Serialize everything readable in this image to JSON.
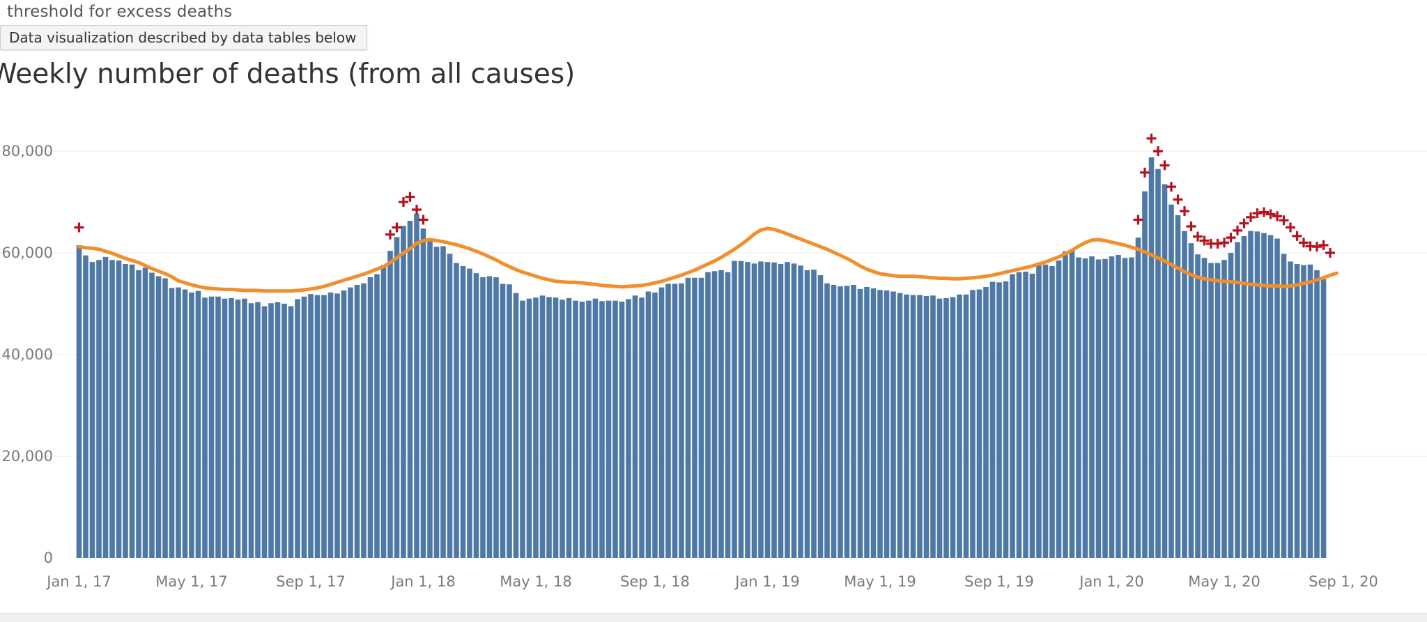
{
  "top_label": "threshold for excess deaths",
  "tooltip": "Data visualization described by data tables below",
  "chart_data": {
    "type": "bar",
    "title": "Weekly number of deaths (from all causes)",
    "xlabel": "",
    "ylabel": "",
    "ylim": [
      0,
      80000
    ],
    "yticks": [
      0,
      20000,
      40000,
      60000,
      80000
    ],
    "ytick_labels": [
      "0",
      "20,000",
      "40,000",
      "60,000",
      "80,000"
    ],
    "xtick_labels": [
      "Jan 1, 17",
      "May 1, 17",
      "Sep 1, 17",
      "Jan 1, 18",
      "May 1, 18",
      "Sep 1, 18",
      "Jan 1, 19",
      "May 1, 19",
      "Sep 1, 19",
      "Jan 1, 20",
      "May 1, 20",
      "Sep 1, 20"
    ],
    "xtick_week_index": [
      0,
      17,
      35,
      52,
      69,
      87,
      104,
      121,
      139,
      156,
      173,
      191
    ],
    "grid": "horizontal",
    "colors": {
      "bars": "#4e79a7",
      "threshold_line": "#f28e2b",
      "excess_marker": "#b5121b"
    },
    "series": [
      {
        "kind": "bar",
        "values": [
          61500,
          59500,
          58200,
          58600,
          59200,
          58600,
          58500,
          57800,
          57700,
          56600,
          57100,
          56100,
          55400,
          55000,
          53100,
          53200,
          52800,
          52200,
          52500,
          51200,
          51400,
          51400,
          51000,
          51100,
          50800,
          51000,
          50100,
          50300,
          49500,
          50100,
          50300,
          50000,
          49500,
          50900,
          51400,
          51900,
          51700,
          51700,
          52200,
          52000,
          52600,
          53200,
          53700,
          54000,
          55200,
          55800,
          57600,
          60400,
          63100,
          65300,
          66300,
          67700,
          64800,
          62700,
          61200,
          61300,
          59800,
          58000,
          57400,
          56900,
          56000,
          55200,
          55400,
          55200,
          53900,
          53800,
          52100,
          50600,
          51000,
          51200,
          51600,
          51300,
          51200,
          50800,
          51100,
          50600,
          50400,
          50600,
          51000,
          50500,
          50600,
          50600,
          50400,
          50900,
          51600,
          51200,
          52400,
          52200,
          53200,
          53900,
          53900,
          54000,
          55100,
          55100,
          55100,
          56200,
          56400,
          56600,
          56200,
          58400,
          58400,
          58200,
          57900,
          58300,
          58200,
          58100,
          57800,
          58200,
          57900,
          57500,
          56600,
          56700,
          55600,
          54000,
          53700,
          53400,
          53500,
          53700,
          52900,
          53300,
          53000,
          52700,
          52600,
          52400,
          52100,
          51800,
          51700,
          51700,
          51500,
          51600,
          51000,
          51100,
          51300,
          51800,
          51800,
          52700,
          52800,
          53300,
          54300,
          54200,
          54400,
          55800,
          56200,
          56300,
          55900,
          57500,
          57700,
          57400,
          58500,
          60300,
          60700,
          59100,
          58900,
          59300,
          58700,
          58800,
          59300,
          59600,
          59000,
          59100,
          63000,
          72100,
          78800,
          76500,
          73500,
          69500,
          67400,
          64300,
          61900,
          59700,
          59000,
          58000,
          58000,
          58600,
          60000,
          62100,
          63300,
          64300,
          64200,
          63900,
          63500,
          62800,
          59800,
          58300,
          57800,
          57600,
          57700,
          56600,
          54800
        ]
      },
      {
        "kind": "line",
        "name": "threshold for excess deaths",
        "values": [
          61200,
          61000,
          60900,
          60700,
          60300,
          59900,
          59400,
          58900,
          58500,
          58100,
          57500,
          56900,
          56400,
          55900,
          55300,
          54500,
          54100,
          53700,
          53400,
          53100,
          53000,
          52900,
          52800,
          52800,
          52700,
          52600,
          52600,
          52600,
          52500,
          52500,
          52500,
          52500,
          52500,
          52600,
          52700,
          52900,
          53100,
          53400,
          53800,
          54200,
          54600,
          55000,
          55400,
          55800,
          56300,
          56800,
          57300,
          58100,
          59000,
          60000,
          60800,
          61900,
          62400,
          62600,
          62400,
          62200,
          61900,
          61600,
          61200,
          60800,
          60300,
          59800,
          59200,
          58600,
          57900,
          57300,
          56700,
          56200,
          55800,
          55400,
          55000,
          54700,
          54400,
          54300,
          54200,
          54200,
          54100,
          53900,
          53800,
          53600,
          53500,
          53400,
          53300,
          53400,
          53500,
          53600,
          53800,
          54100,
          54400,
          54800,
          55200,
          55600,
          56100,
          56600,
          57200,
          57800,
          58400,
          59100,
          59900,
          60700,
          61600,
          62600,
          63700,
          64500,
          64800,
          64600,
          64200,
          63700,
          63200,
          62700,
          62200,
          61700,
          61200,
          60700,
          60100,
          59500,
          58900,
          58200,
          57400,
          56800,
          56300,
          55900,
          55700,
          55500,
          55400,
          55400,
          55400,
          55300,
          55200,
          55100,
          55000,
          55000,
          54900,
          54900,
          55000,
          55100,
          55200,
          55400,
          55600,
          55900,
          56200,
          56500,
          56800,
          57100,
          57400,
          57800,
          58200,
          58700,
          59200,
          59800,
          60500,
          61300,
          62000,
          62500,
          62600,
          62400,
          62100,
          61800,
          61500,
          61100,
          60700,
          60200,
          59600,
          59000,
          58400,
          57700,
          57000,
          56300,
          55700,
          55200,
          54900,
          54700,
          54500,
          54400,
          54300,
          54200,
          54000,
          53800,
          53700,
          53600,
          53500,
          53500,
          53400,
          53500,
          53700,
          54000,
          54300,
          54700,
          55100,
          55600,
          56000
        ]
      },
      {
        "kind": "marker",
        "name": "excess deaths",
        "symbol": "+",
        "points": [
          [
            0,
            65000
          ],
          [
            47,
            63600
          ],
          [
            48,
            65000
          ],
          [
            49,
            70000
          ],
          [
            50,
            71000
          ],
          [
            51,
            68500
          ],
          [
            52,
            66500
          ],
          [
            160,
            66500
          ],
          [
            161,
            75800
          ],
          [
            162,
            82500
          ],
          [
            163,
            80000
          ],
          [
            164,
            77200
          ],
          [
            165,
            73000
          ],
          [
            166,
            70500
          ],
          [
            167,
            68200
          ],
          [
            168,
            65200
          ],
          [
            169,
            63200
          ],
          [
            170,
            62400
          ],
          [
            171,
            61800
          ],
          [
            172,
            61800
          ],
          [
            173,
            62000
          ],
          [
            174,
            63000
          ],
          [
            175,
            64400
          ],
          [
            176,
            65800
          ],
          [
            177,
            67000
          ],
          [
            178,
            67800
          ],
          [
            179,
            68000
          ],
          [
            180,
            67600
          ],
          [
            181,
            67200
          ],
          [
            182,
            66400
          ],
          [
            183,
            65000
          ],
          [
            184,
            63300
          ],
          [
            185,
            62000
          ],
          [
            186,
            61300
          ],
          [
            187,
            61200
          ],
          [
            188,
            61500
          ],
          [
            189,
            60000
          ]
        ]
      }
    ]
  }
}
